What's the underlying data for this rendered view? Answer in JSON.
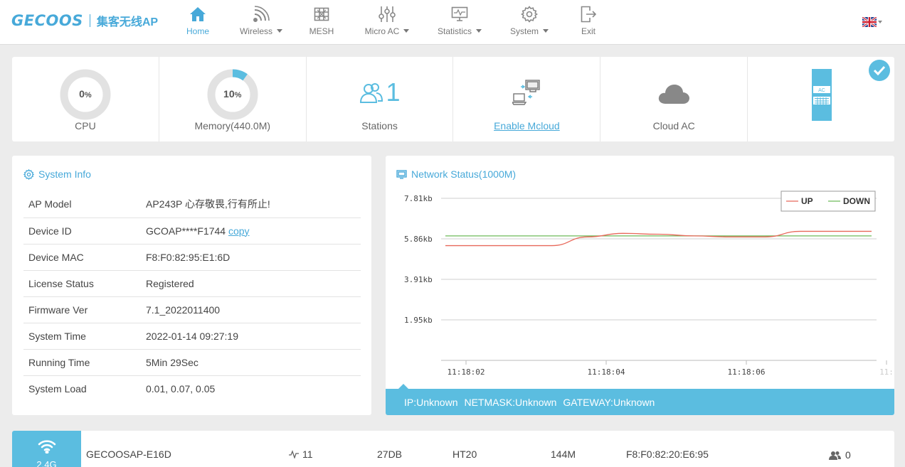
{
  "brand": {
    "logo": "GECOOS",
    "subtitle": "集客无线AP"
  },
  "nav": [
    {
      "label": "Home",
      "icon": "home-icon",
      "dropdown": false,
      "active": true
    },
    {
      "label": "Wireless",
      "icon": "wifi-icon",
      "dropdown": true,
      "active": false
    },
    {
      "label": "MESH",
      "icon": "mesh-icon",
      "dropdown": false,
      "active": false
    },
    {
      "label": "Micro AC",
      "icon": "sliders-icon",
      "dropdown": true,
      "active": false
    },
    {
      "label": "Statistics",
      "icon": "monitor-chart-icon",
      "dropdown": true,
      "active": false
    },
    {
      "label": "System",
      "icon": "gear-icon",
      "dropdown": true,
      "active": false
    },
    {
      "label": "Exit",
      "icon": "exit-icon",
      "dropdown": false,
      "active": false
    }
  ],
  "language": {
    "icon": "uk-flag-icon"
  },
  "status": {
    "cpu": {
      "value": "0",
      "unit": "%",
      "label": "CPU",
      "percent": 0
    },
    "memory": {
      "value": "10",
      "unit": "%",
      "label": "Memory(440.0M)",
      "percent": 10
    },
    "stations": {
      "count": "1",
      "label": "Stations"
    },
    "mcloud": {
      "label": "Enable Mcloud"
    },
    "cloud_ac": {
      "label": "Cloud AC"
    },
    "ac_device": {
      "badge": "AC"
    }
  },
  "system_info": {
    "title": "System Info",
    "rows": [
      {
        "key": "AP Model",
        "value": "AP243P 心存敬畏,行有所止!"
      },
      {
        "key": "Device ID",
        "value": "GCOAP****F1744",
        "link": "copy"
      },
      {
        "key": "Device MAC",
        "value": "F8:F0:82:95:E1:6D"
      },
      {
        "key": "License Status",
        "value": "Registered",
        "status": "ok"
      },
      {
        "key": "Firmware Ver",
        "value": "7.1_2022011400"
      },
      {
        "key": "System Time",
        "value": "2022-01-14 09:27:19"
      },
      {
        "key": "Running Time",
        "value": "5Min 29Sec"
      },
      {
        "key": "System Load",
        "value": "0.01, 0.07, 0.05"
      }
    ]
  },
  "network": {
    "title": "Network Status(1000M)",
    "ip": "IP:Unknown",
    "netmask": "NETMASK:Unknown",
    "gateway": "GATEWAY:Unknown"
  },
  "chart_data": {
    "type": "line",
    "x": [
      "11:18:01.5",
      "11:18:02",
      "11:18:02.5",
      "11:18:03",
      "11:18:03.5",
      "11:18:04",
      "11:18:04.5",
      "11:18:05",
      "11:18:05.5",
      "11:18:06",
      "11:18:06.5",
      "11:18:07",
      "11:18:07.3"
    ],
    "x_ticks": [
      "11:18:02",
      "11:18:04",
      "11:18:06",
      "11:"
    ],
    "y_ticks": [
      "7.81kb",
      "5.86kb",
      "3.91kb",
      "1.95kb"
    ],
    "ylim": [
      0,
      7.81
    ],
    "series": [
      {
        "name": "UP",
        "color": "#e8685a",
        "values": [
          5.53,
          5.53,
          5.53,
          5.53,
          5.95,
          6.12,
          6.08,
          6.0,
          5.95,
          5.95,
          6.22,
          6.22,
          6.22
        ]
      },
      {
        "name": "DOWN",
        "color": "#6fba5a",
        "values": [
          6.0,
          6.0,
          6.0,
          6.0,
          6.0,
          6.0,
          6.0,
          6.0,
          6.0,
          6.0,
          6.0,
          6.0,
          6.0
        ]
      }
    ],
    "grid": true,
    "legend": "top-right"
  },
  "radio": {
    "band": "2.4G",
    "ssid": "GECOOSAP-E16D",
    "channel": "11",
    "signal": "27DB",
    "mode": "HT20",
    "rate": "144M",
    "mac": "F8:F0:82:20:E6:95",
    "clients": "0"
  },
  "colors": {
    "accent": "#5bbde0",
    "brand": "#47a9d9",
    "ok": "#5cb85c",
    "up": "#e8685a",
    "down": "#6fba5a"
  }
}
